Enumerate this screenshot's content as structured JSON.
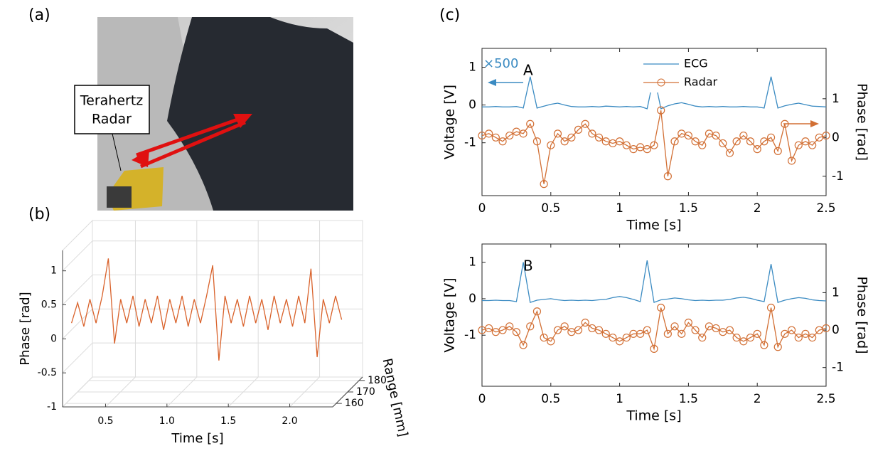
{
  "figure": {
    "panel_labels": [
      "(a)",
      "(b)",
      "(c)"
    ],
    "photo_label": [
      "Terahertz",
      "Radar"
    ]
  },
  "chart_data": [
    {
      "type": "line3d",
      "xlabel": "Time [s]",
      "ylabel": "Phase [rad]",
      "zlabel": "Range [mm]",
      "xlim": [
        0.15,
        2.35
      ],
      "xticks": [
        0.5,
        {
          "value": 1,
          "label": "1.0"
        },
        1.5,
        {
          "value": 2,
          "label": "2.0"
        }
      ],
      "ylim": [
        -1,
        1.3
      ],
      "yticks": [
        -1,
        -0.5,
        0,
        0.5,
        1
      ],
      "zlim": [
        157,
        183
      ],
      "zticks": [
        160,
        170,
        180
      ],
      "grid": true,
      "x": [
        0.15,
        0.2,
        0.25,
        0.3,
        0.35,
        0.4,
        0.45,
        0.5,
        0.55,
        0.6,
        0.65,
        0.7,
        0.75,
        0.8,
        0.85,
        0.9,
        0.95,
        1.0,
        1.05,
        1.1,
        1.15,
        1.2,
        1.25,
        1.3,
        1.35,
        1.4,
        1.45,
        1.5,
        1.55,
        1.6,
        1.65,
        1.7,
        1.75,
        1.8,
        1.85,
        1.9,
        1.95,
        2.0,
        2.05,
        2.1,
        2.15,
        2.2,
        2.25,
        2.3,
        2.35
      ],
      "series": [
        {
          "color": "#d9622b",
          "values": [
            0.1,
            0.4,
            0.05,
            0.45,
            0.1,
            0.5,
            1.05,
            -0.2,
            0.45,
            0.1,
            0.5,
            0.05,
            0.45,
            0.1,
            0.5,
            0.0,
            0.45,
            0.1,
            0.5,
            0.05,
            0.45,
            0.1,
            0.5,
            0.95,
            -0.45,
            0.5,
            0.1,
            0.45,
            0.05,
            0.5,
            0.1,
            0.45,
            0.0,
            0.5,
            0.1,
            0.45,
            0.05,
            0.5,
            0.1,
            0.9,
            -0.4,
            0.45,
            0.1,
            0.5,
            0.15
          ]
        }
      ]
    },
    {
      "type": "line",
      "annotation": "A",
      "scale_note": "×500",
      "xlabel": "Time [s]",
      "ylabel": "Voltage [V]",
      "y2label": "Phase [rad]",
      "xlim": [
        0,
        2.5
      ],
      "xticks": [
        0,
        0.5,
        1,
        1.5,
        2,
        2.5
      ],
      "ylim": [
        -2.4,
        1.5
      ],
      "yticks": [
        -1,
        0,
        1
      ],
      "y2lim": [
        -1.5,
        2.3
      ],
      "y2ticks": [
        -1,
        0,
        1
      ],
      "legend": "top",
      "x": [
        0,
        0.05,
        0.1,
        0.15,
        0.2,
        0.25,
        0.3,
        0.35,
        0.4,
        0.45,
        0.5,
        0.55,
        0.6,
        0.65,
        0.7,
        0.75,
        0.8,
        0.85,
        0.9,
        0.95,
        1,
        1.05,
        1.1,
        1.15,
        1.2,
        1.25,
        1.3,
        1.35,
        1.4,
        1.45,
        1.5,
        1.55,
        1.6,
        1.65,
        1.7,
        1.75,
        1.8,
        1.85,
        1.9,
        1.95,
        2,
        2.05,
        2.1,
        2.15,
        2.2,
        2.25,
        2.3,
        2.35,
        2.4,
        2.45,
        2.5
      ],
      "series": [
        {
          "name": "ECG",
          "color": "#3b8bc2",
          "values": [
            -0.05,
            -0.05,
            -0.04,
            -0.05,
            -0.05,
            -0.04,
            -0.08,
            0.75,
            -0.08,
            -0.03,
            0.02,
            0.05,
            0.0,
            -0.04,
            -0.05,
            -0.05,
            -0.04,
            -0.05,
            -0.03,
            -0.04,
            -0.05,
            -0.04,
            -0.05,
            -0.04,
            -0.1,
            0.78,
            -0.1,
            -0.02,
            0.03,
            0.06,
            0.02,
            -0.03,
            -0.05,
            -0.04,
            -0.05,
            -0.04,
            -0.05,
            -0.05,
            -0.04,
            -0.05,
            -0.05,
            -0.08,
            0.75,
            -0.08,
            -0.02,
            0.02,
            0.05,
            0.01,
            -0.03,
            -0.04,
            -0.05
          ]
        },
        {
          "name": "Radar",
          "color": "#d26f34",
          "marker": "circle",
          "axis": "y2",
          "values": [
            0.05,
            0.1,
            0.0,
            -0.1,
            0.05,
            0.15,
            0.1,
            0.35,
            -0.1,
            -1.2,
            -0.2,
            0.1,
            -0.1,
            0.0,
            0.2,
            0.35,
            0.1,
            0.0,
            -0.1,
            -0.15,
            -0.1,
            -0.2,
            -0.3,
            -0.25,
            -0.3,
            -0.2,
            0.7,
            -1.0,
            -0.1,
            0.1,
            0.05,
            -0.1,
            -0.2,
            0.1,
            0.05,
            -0.15,
            -0.4,
            -0.1,
            0.05,
            -0.1,
            -0.3,
            -0.1,
            0.0,
            -0.35,
            0.35,
            -0.6,
            -0.2,
            -0.1,
            -0.2,
            0.0,
            0.05
          ]
        }
      ]
    },
    {
      "type": "line",
      "annotation": "B",
      "xlabel": "Time [s]",
      "ylabel": "Voltage [V]",
      "y2label": "Phase [rad]",
      "xlim": [
        0,
        2.5
      ],
      "xticks": [
        0,
        0.5,
        1,
        1.5,
        2,
        2.5
      ],
      "ylim": [
        -2.4,
        1.5
      ],
      "yticks": [
        -1,
        0,
        1
      ],
      "y2lim": [
        -1.5,
        2.3
      ],
      "y2ticks": [
        -1,
        0,
        1
      ],
      "x": [
        0,
        0.05,
        0.1,
        0.15,
        0.2,
        0.25,
        0.3,
        0.35,
        0.4,
        0.45,
        0.5,
        0.55,
        0.6,
        0.65,
        0.7,
        0.75,
        0.8,
        0.85,
        0.9,
        0.95,
        1,
        1.05,
        1.1,
        1.15,
        1.2,
        1.25,
        1.3,
        1.35,
        1.4,
        1.45,
        1.5,
        1.55,
        1.6,
        1.65,
        1.7,
        1.75,
        1.8,
        1.85,
        1.9,
        1.95,
        2,
        2.05,
        2.1,
        2.15,
        2.2,
        2.25,
        2.3,
        2.35,
        2.4,
        2.45,
        2.5
      ],
      "series": [
        {
          "name": "ECG",
          "color": "#3b8bc2",
          "values": [
            -0.05,
            -0.05,
            -0.04,
            -0.05,
            -0.05,
            -0.08,
            1.0,
            -0.1,
            -0.04,
            -0.02,
            0.0,
            -0.03,
            -0.05,
            -0.04,
            -0.05,
            -0.04,
            -0.05,
            -0.03,
            -0.02,
            0.03,
            0.06,
            0.03,
            -0.02,
            -0.08,
            1.05,
            -0.1,
            -0.03,
            -0.01,
            0.02,
            0.0,
            -0.03,
            -0.05,
            -0.04,
            -0.05,
            -0.04,
            -0.04,
            -0.02,
            0.02,
            0.04,
            0.01,
            -0.04,
            -0.08,
            0.95,
            -0.1,
            -0.04,
            0.0,
            0.03,
            0.01,
            -0.03,
            -0.05,
            -0.06
          ]
        },
        {
          "name": "Radar",
          "color": "#d26f34",
          "marker": "circle",
          "axis": "y2",
          "values": [
            0.0,
            0.05,
            -0.05,
            0.0,
            0.1,
            -0.05,
            -0.4,
            0.1,
            0.5,
            -0.2,
            -0.3,
            0.0,
            0.1,
            -0.05,
            0.0,
            0.2,
            0.05,
            0.0,
            -0.1,
            -0.2,
            -0.3,
            -0.2,
            -0.1,
            -0.1,
            0.0,
            -0.5,
            0.6,
            -0.1,
            0.1,
            -0.1,
            0.2,
            0.0,
            -0.2,
            0.1,
            0.05,
            -0.05,
            0.0,
            -0.2,
            -0.3,
            -0.2,
            -0.1,
            -0.4,
            0.6,
            -0.45,
            -0.1,
            0.0,
            -0.2,
            -0.1,
            -0.2,
            0.0,
            0.05
          ]
        }
      ]
    }
  ]
}
